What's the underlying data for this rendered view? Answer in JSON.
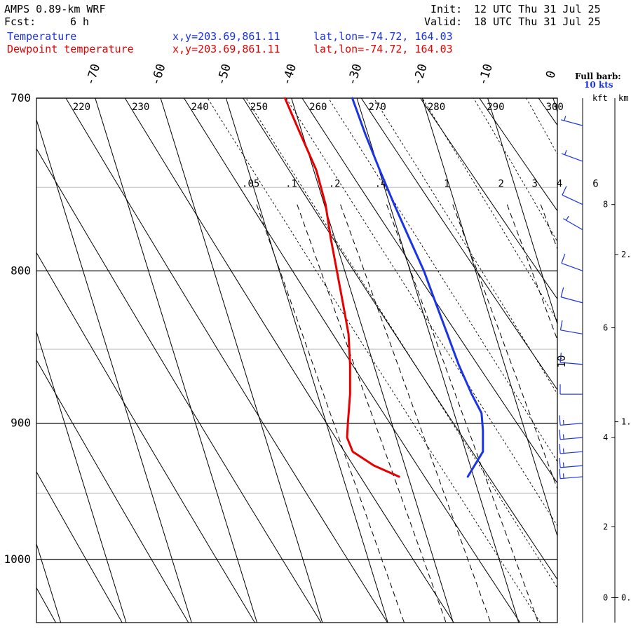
{
  "header": {
    "model": "AMPS 0.89-km WRF",
    "fcst_label": "Fcst:",
    "fcst_value": "6 h",
    "init_label": "Init:",
    "init_value": "12 UTC Thu 31 Jul 25",
    "valid_label": "Valid:",
    "valid_value": "18 UTC Thu 31 Jul 25"
  },
  "legend": [
    {
      "label": "Temperature",
      "xy": "x,y=203.69,861.11",
      "latlon": "lat,lon=-74.72, 164.03",
      "color": "#1a33e6"
    },
    {
      "label": "Dewpoint temperature",
      "xy": "x,y=203.69,861.11",
      "latlon": "lat,lon=-74.72, 164.03",
      "color": "#e60000"
    }
  ],
  "barb_key": {
    "line1": "Full barb:",
    "line2": "10 kts"
  },
  "height_axis": {
    "kft_label": "kft",
    "km_label": "km",
    "kft_ticks": [
      [
        "8",
        760
      ],
      [
        "6",
        836
      ],
      [
        "4",
        910
      ],
      [
        "2",
        975
      ],
      [
        "0",
        1030
      ]
    ],
    "km_ticks": [
      [
        "2.",
        790
      ],
      [
        "1.",
        899
      ],
      [
        "0.",
        1030
      ]
    ]
  },
  "chart_data": {
    "type": "line",
    "pressure_range_hpa": [
      700,
      1050
    ],
    "pressure_labels": [
      700,
      800,
      900,
      1000
    ],
    "temperature_ticks_c": [
      -70,
      -60,
      -50,
      -40,
      -30,
      -20,
      -10,
      0
    ],
    "theta_labels_k": [
      220,
      230,
      240,
      250,
      260,
      270,
      280,
      290,
      300
    ],
    "mixing_ratio_labels": [
      ".05",
      ".1",
      ".2",
      ".4",
      "1",
      "2",
      "3",
      "4",
      "6"
    ],
    "barb_overlay_label": "10",
    "series": [
      {
        "name": "Temperature",
        "color": "#1a33e6",
        "points": [
          [
            700,
            -30.7
          ],
          [
            720,
            -30.4
          ],
          [
            740,
            -29.9
          ],
          [
            760,
            -29.3
          ],
          [
            780,
            -28.6
          ],
          [
            800,
            -27.9
          ],
          [
            820,
            -27.6
          ],
          [
            840,
            -27.3
          ],
          [
            860,
            -27.0
          ],
          [
            880,
            -26.4
          ],
          [
            893,
            -25.8
          ],
          [
            905,
            -26.4
          ],
          [
            920,
            -27.4
          ],
          [
            938,
            -30.9
          ]
        ]
      },
      {
        "name": "Dewpoint temperature",
        "color": "#e60000",
        "points": [
          [
            700,
            -41.0
          ],
          [
            720,
            -40.3
          ],
          [
            740,
            -39.6
          ],
          [
            760,
            -39.8
          ],
          [
            780,
            -40.6
          ],
          [
            800,
            -41.2
          ],
          [
            820,
            -41.8
          ],
          [
            840,
            -42.4
          ],
          [
            860,
            -43.6
          ],
          [
            880,
            -45.0
          ],
          [
            900,
            -46.7
          ],
          [
            910,
            -47.5
          ],
          [
            920,
            -47.3
          ],
          [
            930,
            -44.7
          ],
          [
            938,
            -41.4
          ]
        ]
      }
    ],
    "wind_barbs": [
      {
        "p": 715,
        "speed_kt": 5,
        "dir_deg": 285
      },
      {
        "p": 735,
        "speed_kt": 5,
        "dir_deg": 290
      },
      {
        "p": 760,
        "speed_kt": 10,
        "dir_deg": 295
      },
      {
        "p": 775,
        "speed_kt": 5,
        "dir_deg": 300
      },
      {
        "p": 800,
        "speed_kt": 10,
        "dir_deg": 290
      },
      {
        "p": 820,
        "speed_kt": 10,
        "dir_deg": 285
      },
      {
        "p": 840,
        "speed_kt": 10,
        "dir_deg": 280
      },
      {
        "p": 860,
        "speed_kt": 10,
        "dir_deg": 275
      },
      {
        "p": 880,
        "speed_kt": 10,
        "dir_deg": 270
      },
      {
        "p": 900,
        "speed_kt": 15,
        "dir_deg": 265
      },
      {
        "p": 910,
        "speed_kt": 15,
        "dir_deg": 265
      },
      {
        "p": 920,
        "speed_kt": 15,
        "dir_deg": 265
      },
      {
        "p": 930,
        "speed_kt": 15,
        "dir_deg": 265
      },
      {
        "p": 938,
        "speed_kt": 15,
        "dir_deg": 265
      }
    ]
  }
}
